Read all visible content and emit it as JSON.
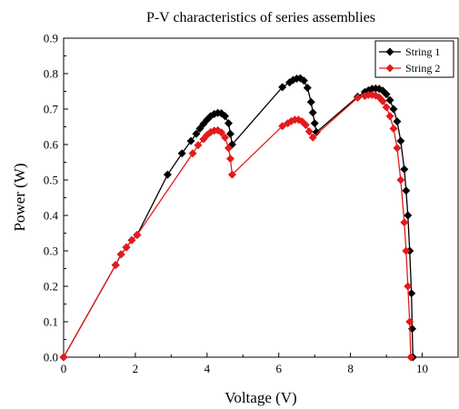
{
  "chart_data": {
    "type": "line",
    "title": "P-V characteristics of series assemblies",
    "xlabel": "Voltage (V)",
    "ylabel": "Power (W)",
    "xlim": [
      0,
      11
    ],
    "ylim": [
      0,
      0.9
    ],
    "xticks": [
      "0",
      "2",
      "4",
      "6",
      "8",
      "10"
    ],
    "xtick_values": [
      0,
      2,
      4,
      6,
      8,
      10
    ],
    "yticks": [
      "0.0",
      "0.1",
      "0.2",
      "0.3",
      "0.4",
      "0.5",
      "0.6",
      "0.7",
      "0.8",
      "0.9"
    ],
    "ytick_values": [
      0,
      0.1,
      0.2,
      0.3,
      0.4,
      0.5,
      0.6,
      0.7,
      0.8,
      0.9
    ],
    "grid": false,
    "legend_position": "top-right",
    "series": [
      {
        "name": "String 1",
        "color": "#000000",
        "marker": "diamond",
        "points": [
          [
            0.0,
            0.0
          ],
          [
            1.45,
            0.26
          ],
          [
            1.6,
            0.29
          ],
          [
            1.75,
            0.31
          ],
          [
            1.9,
            0.33
          ],
          [
            2.05,
            0.345
          ],
          [
            2.9,
            0.515
          ],
          [
            3.3,
            0.575
          ],
          [
            3.55,
            0.61
          ],
          [
            3.7,
            0.63
          ],
          [
            3.8,
            0.645
          ],
          [
            3.9,
            0.658
          ],
          [
            4.0,
            0.67
          ],
          [
            4.1,
            0.68
          ],
          [
            4.2,
            0.686
          ],
          [
            4.3,
            0.689
          ],
          [
            4.4,
            0.688
          ],
          [
            4.5,
            0.68
          ],
          [
            4.6,
            0.66
          ],
          [
            4.65,
            0.63
          ],
          [
            4.7,
            0.6
          ],
          [
            6.1,
            0.762
          ],
          [
            6.3,
            0.775
          ],
          [
            6.4,
            0.782
          ],
          [
            6.5,
            0.786
          ],
          [
            6.6,
            0.787
          ],
          [
            6.7,
            0.78
          ],
          [
            6.8,
            0.76
          ],
          [
            6.9,
            0.72
          ],
          [
            6.95,
            0.69
          ],
          [
            7.0,
            0.66
          ],
          [
            7.05,
            0.635
          ],
          [
            8.2,
            0.735
          ],
          [
            8.4,
            0.748
          ],
          [
            8.5,
            0.753
          ],
          [
            8.6,
            0.757
          ],
          [
            8.7,
            0.758
          ],
          [
            8.8,
            0.757
          ],
          [
            8.9,
            0.752
          ],
          [
            9.0,
            0.742
          ],
          [
            9.1,
            0.725
          ],
          [
            9.2,
            0.7
          ],
          [
            9.3,
            0.665
          ],
          [
            9.4,
            0.61
          ],
          [
            9.5,
            0.53
          ],
          [
            9.55,
            0.47
          ],
          [
            9.6,
            0.4
          ],
          [
            9.65,
            0.3
          ],
          [
            9.7,
            0.18
          ],
          [
            9.72,
            0.08
          ],
          [
            9.74,
            0.0
          ]
        ]
      },
      {
        "name": "String 2",
        "color": "#e41a1c",
        "marker": "diamond",
        "points": [
          [
            0.0,
            0.0
          ],
          [
            1.45,
            0.26
          ],
          [
            1.6,
            0.29
          ],
          [
            1.75,
            0.31
          ],
          [
            1.9,
            0.33
          ],
          [
            2.05,
            0.345
          ],
          [
            3.6,
            0.575
          ],
          [
            3.75,
            0.598
          ],
          [
            3.9,
            0.615
          ],
          [
            4.0,
            0.627
          ],
          [
            4.1,
            0.635
          ],
          [
            4.2,
            0.639
          ],
          [
            4.3,
            0.64
          ],
          [
            4.4,
            0.634
          ],
          [
            4.5,
            0.62
          ],
          [
            4.6,
            0.59
          ],
          [
            4.65,
            0.56
          ],
          [
            4.7,
            0.515
          ],
          [
            6.1,
            0.652
          ],
          [
            6.25,
            0.66
          ],
          [
            6.35,
            0.666
          ],
          [
            6.45,
            0.67
          ],
          [
            6.55,
            0.67
          ],
          [
            6.65,
            0.665
          ],
          [
            6.75,
            0.655
          ],
          [
            6.85,
            0.637
          ],
          [
            6.95,
            0.62
          ],
          [
            8.2,
            0.732
          ],
          [
            8.4,
            0.737
          ],
          [
            8.5,
            0.74
          ],
          [
            8.6,
            0.74
          ],
          [
            8.7,
            0.738
          ],
          [
            8.8,
            0.733
          ],
          [
            8.9,
            0.722
          ],
          [
            9.0,
            0.705
          ],
          [
            9.1,
            0.68
          ],
          [
            9.2,
            0.645
          ],
          [
            9.3,
            0.59
          ],
          [
            9.4,
            0.5
          ],
          [
            9.5,
            0.38
          ],
          [
            9.55,
            0.3
          ],
          [
            9.6,
            0.2
          ],
          [
            9.65,
            0.1
          ],
          [
            9.68,
            0.0
          ]
        ]
      }
    ]
  }
}
